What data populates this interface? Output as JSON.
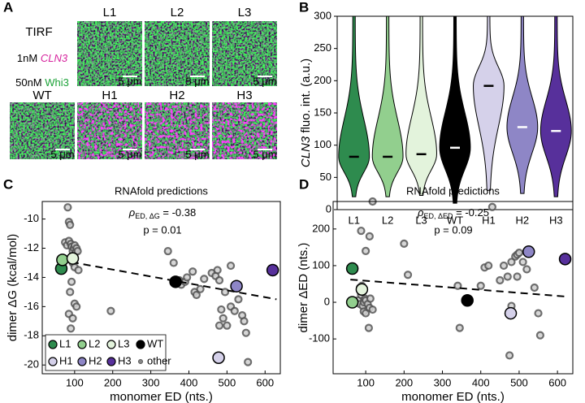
{
  "panel_a": {
    "letter": "A",
    "method": "TIRF",
    "rna_conc": "1nM",
    "rna": "CLN3",
    "protein_conc": "50nM",
    "protein": "Whi3",
    "scale_bar": "5 μm",
    "top_row": [
      "L1",
      "L2",
      "L3"
    ],
    "bottom_row": [
      "WT",
      "H1",
      "H2",
      "H3"
    ]
  },
  "chart_data": [
    {
      "type": "violin",
      "panel": "B",
      "ylabel_italic": "CLN3",
      "ylabel": "fluo. int. (a.u.)",
      "categories": [
        "L1",
        "L2",
        "L3",
        "WT",
        "H1",
        "H2",
        "H3"
      ],
      "colors": [
        "#2e8b4e",
        "#92cf8e",
        "#e3f3dc",
        "#000000",
        "#d5d1ea",
        "#8e86c6",
        "#57309b"
      ],
      "median_colors": [
        "#000000",
        "#000000",
        "#000000",
        "#ffffff",
        "#000000",
        "#ffffff",
        "#ffffff"
      ],
      "medians": [
        82,
        82,
        86,
        96,
        192,
        128,
        122
      ],
      "mins": [
        20,
        20,
        22,
        10,
        30,
        25,
        20
      ],
      "maxs": [
        300,
        300,
        300,
        300,
        300,
        300,
        300
      ],
      "ylim": [
        0,
        300
      ],
      "yticks": [
        0,
        50,
        100,
        150,
        200,
        250,
        300
      ]
    },
    {
      "type": "scatter",
      "panel": "C",
      "title": "RNAfold predictions",
      "stat_symbol": "ρ",
      "stat_subscript": "ED, ΔG",
      "stat_value": " = -0.38",
      "p_value": "p = 0.01",
      "xlabel": "monomer ED (nts.)",
      "ylabel": "dimer ΔG (kcal/mol)",
      "xlim": [
        15,
        640
      ],
      "xticks": [
        100,
        200,
        300,
        400,
        500,
        600
      ],
      "ylim": [
        -20.6,
        -8.8
      ],
      "yticks": [
        -10,
        -12,
        -14,
        -16,
        -18,
        -20
      ],
      "legend": true,
      "fit": {
        "x": [
          60,
          630
        ],
        "values": [
          -12.8,
          -15.5
        ]
      },
      "series": [
        {
          "name": "other",
          "color": "#9a9a9a",
          "x": [
            75,
            80,
            82,
            85,
            88,
            85,
            90,
            92,
            95,
            98,
            100,
            102,
            105,
            108,
            90,
            95,
            100,
            92,
            88,
            85,
            95,
            90,
            100,
            110,
            105,
            195,
            345,
            360,
            375,
            380,
            390,
            395,
            410,
            415,
            420,
            430,
            440,
            460,
            470,
            475,
            480,
            485,
            490,
            480,
            500,
            510,
            520,
            530,
            540,
            545,
            550,
            555,
            510,
            495
          ],
          "values": [
            -11.6,
            -11.8,
            -9.2,
            -10.2,
            -10.4,
            -11.5,
            -11.7,
            -11.9,
            -12.2,
            -12.0,
            -11.8,
            -12.3,
            -12.0,
            -12.2,
            -12.8,
            -13.0,
            -13.3,
            -14.3,
            -15.0,
            -16.5,
            -16.8,
            -17.5,
            -15.8,
            -13.5,
            -16.0,
            -16.3,
            -12.2,
            -13.0,
            -14.2,
            -14.5,
            -14.3,
            -14.0,
            -13.6,
            -15.0,
            -15.2,
            -14.8,
            -14.1,
            -13.7,
            -13.9,
            -13.5,
            -14.2,
            -16.2,
            -16.8,
            -17.3,
            -17.3,
            -16.0,
            -16.3,
            -15.5,
            -16.6,
            -17.0,
            -17.8,
            -19.8,
            -13.2,
            -15.0
          ]
        },
        {
          "name": "L1",
          "color": "#2e8b4e",
          "x": [
            65
          ],
          "values": [
            -13.4
          ]
        },
        {
          "name": "L2",
          "color": "#92cf8e",
          "x": [
            68
          ],
          "values": [
            -12.8
          ]
        },
        {
          "name": "L3",
          "color": "#e3f3dc",
          "x": [
            95
          ],
          "values": [
            -12.7
          ]
        },
        {
          "name": "WT",
          "color": "#000000",
          "x": [
            365
          ],
          "values": [
            -14.3
          ]
        },
        {
          "name": "H1",
          "color": "#d5d1ea",
          "x": [
            478
          ],
          "values": [
            -19.5
          ]
        },
        {
          "name": "H2",
          "color": "#8e86c6",
          "x": [
            525
          ],
          "values": [
            -14.6
          ]
        },
        {
          "name": "H3",
          "color": "#57309b",
          "x": [
            620
          ],
          "values": [
            -13.5
          ]
        }
      ]
    },
    {
      "type": "scatter",
      "panel": "D",
      "title": "RNAfold predictions",
      "stat_symbol": "ρ",
      "stat_subscript": "ED, ΔED",
      "stat_value": " = -0.25",
      "p_value": "p = 0.09",
      "xlabel": "monomer ED (nts.)",
      "ylabel": "dimer ΔED (nts.)",
      "xlim": [
        15,
        640
      ],
      "xticks": [
        100,
        200,
        300,
        400,
        500,
        600
      ],
      "ylim": [
        -195,
        275
      ],
      "yticks": [
        200,
        100,
        0,
        -100
      ],
      "legend": false,
      "fit": {
        "x": [
          60,
          630
        ],
        "values": [
          62,
          15
        ]
      },
      "series": [
        {
          "name": "other",
          "color": "#9a9a9a",
          "x": [
            80,
            85,
            88,
            90,
            92,
            95,
            98,
            100,
            105,
            110,
            112,
            85,
            90,
            95,
            100,
            108,
            118,
            88,
            100,
            118,
            110,
            200,
            210,
            340,
            345,
            400,
            410,
            420,
            430,
            450,
            460,
            470,
            480,
            490,
            495,
            500,
            510,
            520,
            475,
            540,
            550,
            555,
            480,
            495
          ],
          "values": [
            5,
            -5,
            20,
            30,
            -10,
            0,
            10,
            5,
            -5,
            -15,
            10,
            40,
            45,
            -25,
            -30,
            -70,
            -20,
            195,
            140,
            275,
            180,
            160,
            75,
            45,
            -70,
            45,
            95,
            100,
            260,
            60,
            100,
            70,
            110,
            125,
            130,
            135,
            110,
            90,
            -145,
            40,
            -30,
            -90,
            -10,
            70
          ]
        },
        {
          "name": "L1",
          "color": "#2e8b4e",
          "x": [
            65
          ],
          "values": [
            92
          ]
        },
        {
          "name": "L2",
          "color": "#92cf8e",
          "x": [
            65
          ],
          "values": [
            0
          ]
        },
        {
          "name": "L3",
          "color": "#e3f3dc",
          "x": [
            90
          ],
          "values": [
            35
          ]
        },
        {
          "name": "WT",
          "color": "#000000",
          "x": [
            365
          ],
          "values": [
            5
          ]
        },
        {
          "name": "H1",
          "color": "#d5d1ea",
          "x": [
            478
          ],
          "values": [
            -30
          ]
        },
        {
          "name": "H2",
          "color": "#8e86c6",
          "x": [
            525
          ],
          "values": [
            138
          ]
        },
        {
          "name": "H3",
          "color": "#57309b",
          "x": [
            620
          ],
          "values": [
            118
          ]
        }
      ]
    }
  ]
}
